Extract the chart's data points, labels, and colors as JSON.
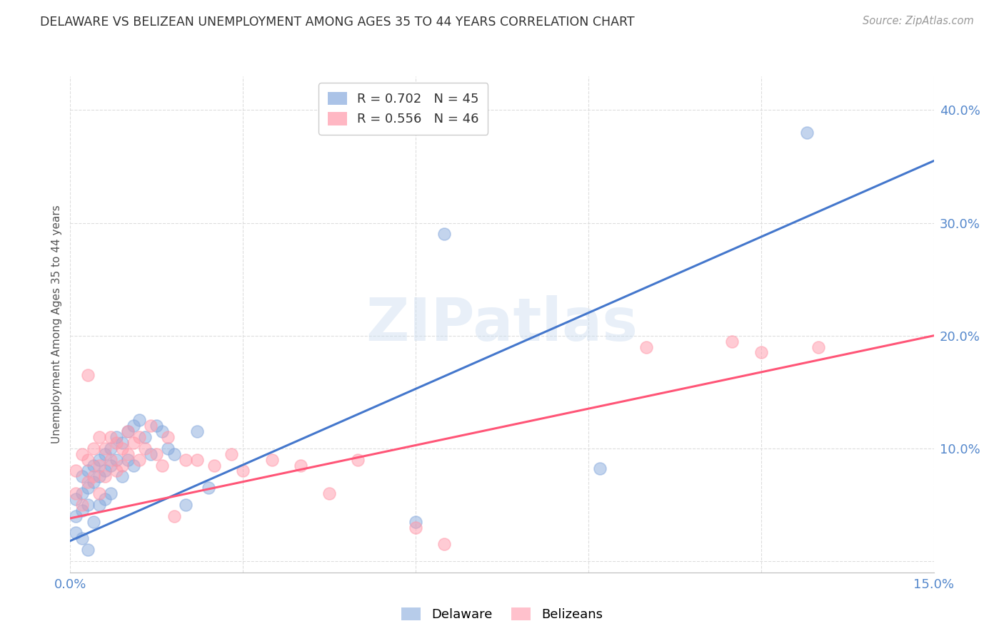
{
  "title": "DELAWARE VS BELIZEAN UNEMPLOYMENT AMONG AGES 35 TO 44 YEARS CORRELATION CHART",
  "source": "Source: ZipAtlas.com",
  "ylabel": "Unemployment Among Ages 35 to 44 years",
  "xlim": [
    0.0,
    0.15
  ],
  "ylim": [
    -0.01,
    0.43
  ],
  "xticks": [
    0.0,
    0.03,
    0.06,
    0.09,
    0.12,
    0.15
  ],
  "xtick_labels": [
    "0.0%",
    "",
    "",
    "",
    "",
    "15.0%"
  ],
  "ytick_positions": [
    0.0,
    0.1,
    0.2,
    0.3,
    0.4
  ],
  "ytick_labels": [
    "",
    "10.0%",
    "20.0%",
    "30.0%",
    "40.0%"
  ],
  "delaware_color": "#88AADD",
  "belizean_color": "#FF99AA",
  "delaware_line_color": "#4477CC",
  "belizean_line_color": "#FF5577",
  "tick_color": "#5588CC",
  "legend_R_delaware": "0.702",
  "legend_N_delaware": "45",
  "legend_R_belizean": "0.556",
  "legend_N_belizean": "46",
  "watermark": "ZIPatlas",
  "background_color": "#FFFFFF",
  "grid_color": "#DDDDDD",
  "del_line_x": [
    0.0,
    0.15
  ],
  "del_line_y": [
    0.018,
    0.355
  ],
  "bel_line_x": [
    0.0,
    0.15
  ],
  "bel_line_y": [
    0.038,
    0.2
  ],
  "delaware_x": [
    0.001,
    0.001,
    0.001,
    0.002,
    0.002,
    0.002,
    0.002,
    0.003,
    0.003,
    0.003,
    0.003,
    0.004,
    0.004,
    0.004,
    0.005,
    0.005,
    0.005,
    0.006,
    0.006,
    0.006,
    0.007,
    0.007,
    0.007,
    0.008,
    0.008,
    0.009,
    0.009,
    0.01,
    0.01,
    0.011,
    0.011,
    0.012,
    0.013,
    0.014,
    0.015,
    0.016,
    0.017,
    0.018,
    0.02,
    0.022,
    0.024,
    0.06,
    0.065,
    0.092,
    0.128
  ],
  "delaware_y": [
    0.055,
    0.04,
    0.025,
    0.075,
    0.06,
    0.045,
    0.02,
    0.08,
    0.065,
    0.05,
    0.01,
    0.085,
    0.07,
    0.035,
    0.09,
    0.075,
    0.05,
    0.095,
    0.08,
    0.055,
    0.1,
    0.085,
    0.06,
    0.11,
    0.09,
    0.105,
    0.075,
    0.115,
    0.09,
    0.12,
    0.085,
    0.125,
    0.11,
    0.095,
    0.12,
    0.115,
    0.1,
    0.095,
    0.05,
    0.115,
    0.065,
    0.035,
    0.29,
    0.082,
    0.38
  ],
  "belizean_x": [
    0.001,
    0.001,
    0.002,
    0.002,
    0.003,
    0.003,
    0.003,
    0.004,
    0.004,
    0.005,
    0.005,
    0.005,
    0.006,
    0.006,
    0.007,
    0.007,
    0.008,
    0.008,
    0.009,
    0.009,
    0.01,
    0.01,
    0.011,
    0.012,
    0.012,
    0.013,
    0.014,
    0.015,
    0.016,
    0.017,
    0.018,
    0.02,
    0.022,
    0.025,
    0.028,
    0.03,
    0.035,
    0.04,
    0.045,
    0.05,
    0.06,
    0.065,
    0.1,
    0.115,
    0.12,
    0.13
  ],
  "belizean_y": [
    0.06,
    0.08,
    0.05,
    0.095,
    0.07,
    0.09,
    0.165,
    0.075,
    0.1,
    0.06,
    0.085,
    0.11,
    0.075,
    0.1,
    0.09,
    0.11,
    0.08,
    0.105,
    0.085,
    0.1,
    0.095,
    0.115,
    0.105,
    0.09,
    0.11,
    0.1,
    0.12,
    0.095,
    0.085,
    0.11,
    0.04,
    0.09,
    0.09,
    0.085,
    0.095,
    0.08,
    0.09,
    0.085,
    0.06,
    0.09,
    0.03,
    0.015,
    0.19,
    0.195,
    0.185,
    0.19
  ]
}
